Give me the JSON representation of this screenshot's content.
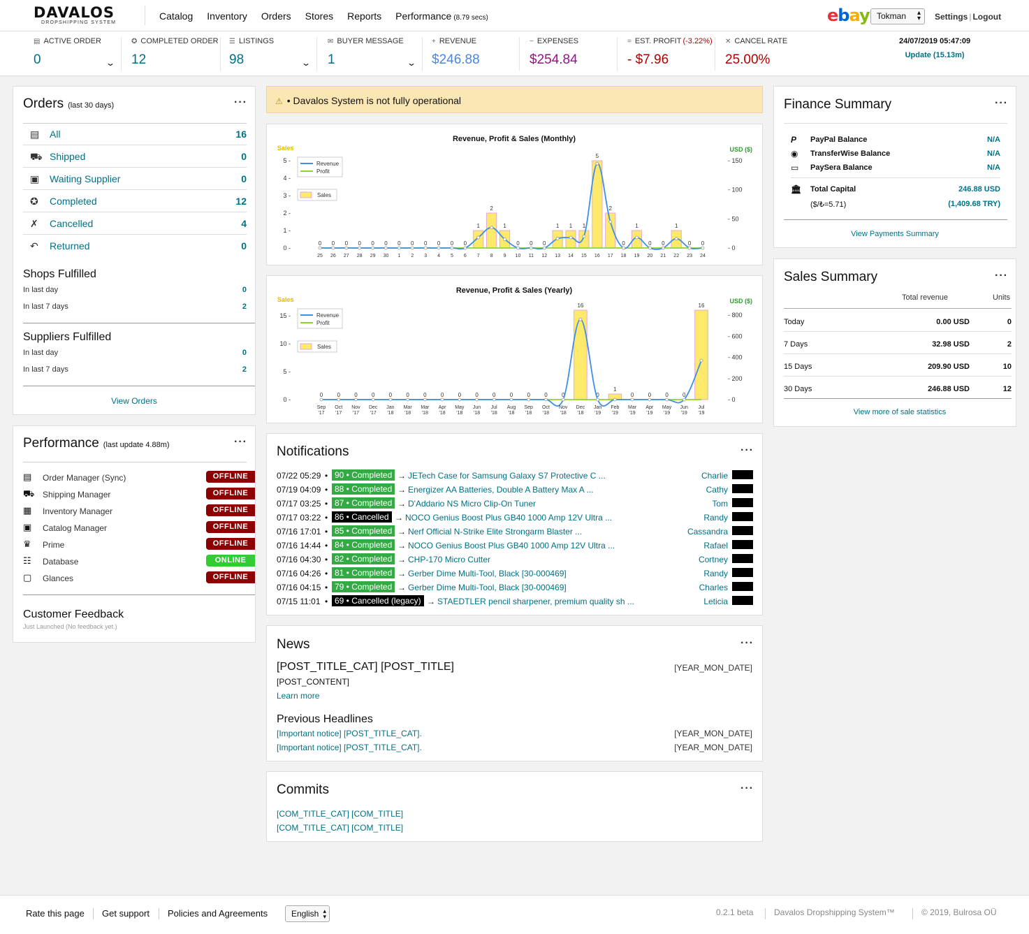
{
  "header": {
    "logo_main": "DAVALOS",
    "logo_sub": "DROPSHIPPING SYSTEM",
    "nav": [
      "Catalog",
      "Inventory",
      "Orders",
      "Stores",
      "Reports",
      "Performance"
    ],
    "perf_time": "(8.79 secs)",
    "ebay": {
      "e": "e",
      "b": "b",
      "a": "a",
      "y": "y"
    },
    "account": "Tokman",
    "settings": "Settings",
    "logout": "Logout"
  },
  "stats": [
    {
      "label": "ACTIVE ORDER",
      "value": "0",
      "icon": "doc-icon",
      "glyph": "▤",
      "color": "#007185"
    },
    {
      "label": "COMPLETED ORDER",
      "value": "12",
      "icon": "ribbon-icon",
      "glyph": "✪",
      "color": "#007185"
    },
    {
      "label": "LISTINGS",
      "value": "98",
      "icon": "list-icon",
      "glyph": "☰",
      "color": "#007185"
    },
    {
      "label": "BUYER MESSAGE",
      "value": "1",
      "icon": "envelope-icon",
      "glyph": "✉",
      "color": "#007185"
    },
    {
      "label": "REVENUE",
      "value": "$246.88",
      "icon": "plus-icon",
      "glyph": "+",
      "color": "#4a86e8"
    },
    {
      "label": "EXPENSES",
      "value": "$254.84",
      "icon": "minus-icon",
      "glyph": "−",
      "color": "#9c0e8a"
    },
    {
      "label": "EST. PROFIT",
      "label_extra": "(-3.22%)",
      "value": "- $7.96",
      "icon": "equals-icon",
      "glyph": "=",
      "color": "#b10000"
    },
    {
      "label": "CANCEL RATE",
      "value": "25.00%",
      "icon": "x-icon",
      "glyph": "✕",
      "color": "#b10000"
    }
  ],
  "datetime": "24/07/2019 05:47:09",
  "update": "Update (15.13m)",
  "orders": {
    "title": "Orders",
    "subtitle": "(last 30 days)",
    "rows": [
      {
        "label": "All",
        "count": "16",
        "icon": "doc-icon",
        "glyph": "▤"
      },
      {
        "label": "Shipped",
        "count": "0",
        "icon": "truck-icon",
        "glyph": "⛟"
      },
      {
        "label": "Waiting Supplier",
        "count": "0",
        "icon": "box-icon",
        "glyph": "▣"
      },
      {
        "label": "Completed",
        "count": "12",
        "icon": "ribbon-icon",
        "glyph": "✪"
      },
      {
        "label": "Cancelled",
        "count": "4",
        "icon": "ribbon-cross-icon",
        "glyph": "✗"
      },
      {
        "label": "Returned",
        "count": "0",
        "icon": "return-icon",
        "glyph": "↶"
      }
    ],
    "shops_title": "Shops Fulfilled",
    "shops": [
      {
        "label": "In last day",
        "value": "0"
      },
      {
        "label": "In last 7 days",
        "value": "2"
      }
    ],
    "suppliers_title": "Suppliers Fulfilled",
    "suppliers": [
      {
        "label": "In last day",
        "value": "0"
      },
      {
        "label": "In last 7 days",
        "value": "2"
      }
    ],
    "view_link": "View Orders"
  },
  "performance": {
    "title": "Performance",
    "subtitle": "(last update 4.88m)",
    "rows": [
      {
        "label": "Order Manager (Sync)",
        "status": "OFFLINE",
        "icon": "doc-icon",
        "glyph": "▤"
      },
      {
        "label": "Shipping Manager",
        "status": "OFFLINE",
        "icon": "truck-icon",
        "glyph": "⛟"
      },
      {
        "label": "Inventory Manager",
        "status": "OFFLINE",
        "icon": "warehouse-icon",
        "glyph": "▦"
      },
      {
        "label": "Catalog Manager",
        "status": "OFFLINE",
        "icon": "catalog-icon",
        "glyph": "▣"
      },
      {
        "label": "Prime",
        "status": "OFFLINE",
        "icon": "crown-icon",
        "glyph": "♛"
      },
      {
        "label": "Database",
        "status": "ONLINE",
        "icon": "database-icon",
        "glyph": "☷"
      },
      {
        "label": "Glances",
        "status": "OFFLINE",
        "icon": "monitor-icon",
        "glyph": "▢"
      }
    ],
    "colors": {
      "offline": "#8b0000",
      "online": "#33cc33"
    },
    "feedback_title": "Customer Feedback",
    "feedback_sub": "Just Launched (No feedback yet.)"
  },
  "alert": {
    "icon": "warning-icon",
    "glyph": "⚠",
    "text": "• Davalos System is not fully operational"
  },
  "chart_data": [
    {
      "type": "bar",
      "title": "Revenue, Profit & Sales (Monthly)",
      "left_axis_label": "Sales",
      "right_axis_label": "USD ($)",
      "categories": [
        "25",
        "26",
        "27",
        "28",
        "29",
        "30",
        "1",
        "2",
        "3",
        "4",
        "5",
        "6",
        "7",
        "8",
        "9",
        "10",
        "11",
        "12",
        "13",
        "14",
        "15",
        "16",
        "17",
        "18",
        "19",
        "20",
        "21",
        "22",
        "23",
        "24"
      ],
      "left_ticks": [
        "0",
        "1",
        "2",
        "3",
        "4",
        "5"
      ],
      "right_ticks": [
        "0",
        "50",
        "100",
        "150"
      ],
      "ylim_left": [
        0,
        5
      ],
      "ylim_right": [
        0,
        150
      ],
      "legend": [
        "Revenue",
        "Profit",
        "Sales"
      ],
      "series": [
        {
          "name": "Sales",
          "values": [
            0,
            0,
            0,
            0,
            0,
            0,
            0,
            0,
            0,
            0,
            0,
            0,
            1,
            2,
            1,
            0,
            0,
            0,
            1,
            1,
            1,
            5,
            2,
            0,
            1,
            0,
            0,
            1,
            0,
            0
          ]
        },
        {
          "name": "Revenue",
          "values": [
            0,
            0,
            0,
            0,
            0,
            0,
            0,
            0,
            0,
            0,
            0,
            0,
            18,
            35,
            15,
            0,
            0,
            0,
            16,
            18,
            20,
            145,
            45,
            0,
            18,
            0,
            0,
            16,
            0,
            0
          ]
        },
        {
          "name": "Profit",
          "values": [
            0,
            0,
            0,
            0,
            0,
            0,
            0,
            0,
            0,
            0,
            0,
            0,
            0,
            0,
            0,
            0,
            0,
            0,
            0,
            0,
            0,
            0,
            0,
            0,
            0,
            0,
            0,
            0,
            0,
            0
          ]
        }
      ]
    },
    {
      "type": "bar",
      "title": "Revenue, Profit & Sales (Yearly)",
      "left_axis_label": "Sales",
      "right_axis_label": "USD ($)",
      "categories": [
        [
          "Sep",
          "'17"
        ],
        [
          "Oct",
          "'17"
        ],
        [
          "Nov",
          "'17"
        ],
        [
          "Dec",
          "'17"
        ],
        [
          "Jan",
          "'18"
        ],
        [
          "Mar",
          "'18"
        ],
        [
          "Mar",
          "'18"
        ],
        [
          "Apr",
          "'18"
        ],
        [
          "May",
          "'18"
        ],
        [
          "Jun",
          "'18"
        ],
        [
          "Jul",
          "'18"
        ],
        [
          "Aug",
          "'18"
        ],
        [
          "Sep",
          "'18"
        ],
        [
          "Oct",
          "'18"
        ],
        [
          "Nov",
          "'18"
        ],
        [
          "Dec",
          "'18"
        ],
        [
          "Jan",
          "'19"
        ],
        [
          "Feb",
          "'19"
        ],
        [
          "Mar",
          "'19"
        ],
        [
          "Apr",
          "'19"
        ],
        [
          "May",
          "'19"
        ],
        [
          "Jun",
          "'19"
        ],
        [
          "Jul",
          "'19"
        ]
      ],
      "left_ticks": [
        "0",
        "5",
        "10",
        "15"
      ],
      "right_ticks": [
        "0",
        "200",
        "400",
        "600",
        "800"
      ],
      "ylim_left": [
        0,
        17
      ],
      "ylim_right": [
        0,
        900
      ],
      "legend": [
        "Revenue",
        "Profit",
        "Sales"
      ],
      "series": [
        {
          "name": "Sales",
          "values": [
            0,
            0,
            0,
            0,
            0,
            0,
            0,
            0,
            0,
            0,
            0,
            0,
            0,
            0,
            0,
            16,
            0,
            1,
            0,
            0,
            0,
            0,
            16
          ]
        },
        {
          "name": "Revenue",
          "values": [
            0,
            0,
            0,
            0,
            0,
            0,
            0,
            0,
            0,
            0,
            0,
            0,
            0,
            0,
            0,
            760,
            0,
            0,
            0,
            0,
            0,
            0,
            370
          ]
        },
        {
          "name": "Profit",
          "values": [
            0,
            0,
            0,
            0,
            0,
            0,
            0,
            0,
            0,
            0,
            0,
            0,
            0,
            0,
            0,
            0,
            0,
            0,
            0,
            0,
            0,
            0,
            0
          ]
        }
      ]
    }
  ],
  "chart_colors": {
    "sales_fill": "#fde96a",
    "sales_stroke": "#e6a8d8",
    "revenue": "#3d8fe8",
    "profit": "#8fd52a",
    "left_axis": "#e6b800",
    "right_axis": "#2ca02c"
  },
  "notifications": {
    "title": "Notifications",
    "rows": [
      {
        "date": "07/22 05:29",
        "badge": "90 • Completed",
        "status": "completed",
        "item": "JETech Case for Samsung Galaxy S7 Protective C ...",
        "customer": "Charlie"
      },
      {
        "date": "07/19 04:09",
        "badge": "88 • Completed",
        "status": "completed",
        "item": "Energizer AA Batteries, Double A Battery Max A ...",
        "customer": "Cathy"
      },
      {
        "date": "07/17 03:25",
        "badge": "87 • Completed",
        "status": "completed",
        "item": "D'Addario NS Micro Clip-On Tuner",
        "customer": "Tom"
      },
      {
        "date": "07/17 03:22",
        "badge": "86 • Cancelled",
        "status": "cancelled",
        "item": "NOCO Genius Boost Plus GB40 1000 Amp 12V Ultra ...",
        "customer": "Randy"
      },
      {
        "date": "07/16 17:01",
        "badge": "85 • Completed",
        "status": "completed",
        "item": "Nerf Official N-Strike Elite Strongarm Blaster ...",
        "customer": "Cassandra"
      },
      {
        "date": "07/16 14:44",
        "badge": "84 • Completed",
        "status": "completed",
        "item": "NOCO Genius Boost Plus GB40 1000 Amp 12V Ultra ...",
        "customer": "Rafael"
      },
      {
        "date": "07/16 04:30",
        "badge": "82 • Completed",
        "status": "completed",
        "item": "CHP-170 Micro Cutter",
        "customer": "Cortney"
      },
      {
        "date": "07/16 04:26",
        "badge": "81 • Completed",
        "status": "completed",
        "item": "Gerber Dime Multi-Tool, Black [30-000469]",
        "customer": "Randy"
      },
      {
        "date": "07/16 04:15",
        "badge": "79 • Completed",
        "status": "completed",
        "item": "Gerber Dime Multi-Tool, Black [30-000469]",
        "customer": "Charles"
      },
      {
        "date": "07/15 11:01",
        "badge": "69 • Cancelled (legacy)",
        "status": "cancelled",
        "item": "STAEDTLER pencil sharpener, premium quality sh ...",
        "customer": "Leticia"
      }
    ]
  },
  "news": {
    "title": "News",
    "post_title": "[POST_TITLE_CAT] [POST_TITLE]",
    "post_date": "[YEAR_MON_DATE]",
    "post_content": "[POST_CONTENT]",
    "learn_more": "Learn more",
    "prev_title": "Previous Headlines",
    "prev": [
      {
        "text": "[Important notice] [POST_TITLE_CAT].",
        "date": "[YEAR_MON_DATE]"
      },
      {
        "text": "[Important notice] [POST_TITLE_CAT].",
        "date": "[YEAR_MON_DATE]"
      }
    ]
  },
  "commits": {
    "title": "Commits",
    "rows": [
      "[COM_TITLE_CAT] [COM_TITLE]",
      "[COM_TITLE_CAT] [COM_TITLE]"
    ]
  },
  "finance": {
    "title": "Finance Summary",
    "rows": [
      {
        "label": "PayPal Balance",
        "value": "N/A",
        "icon": "paypal-icon",
        "glyph": "P"
      },
      {
        "label": "TransferWise Balance",
        "value": "N/A",
        "icon": "transferwise-icon",
        "glyph": "◉"
      },
      {
        "label": "PaySera Balance",
        "value": "N/A",
        "icon": "visa-card-icon",
        "glyph": "▭"
      }
    ],
    "capital_label": "Total Capital",
    "capital_value": "246.88 USD",
    "rate_label": "($/₺=5.71)",
    "rate_value": "(1,409.68 TRY)",
    "link": "View Payments Summary"
  },
  "sales": {
    "title": "Sales Summary",
    "col_revenue": "Total revenue",
    "col_units": "Units",
    "rows": [
      {
        "label": "Today",
        "revenue": "0.00 USD",
        "units": "0"
      },
      {
        "label": "7 Days",
        "revenue": "32.98 USD",
        "units": "2"
      },
      {
        "label": "15 Days",
        "revenue": "209.90 USD",
        "units": "10"
      },
      {
        "label": "30 Days",
        "revenue": "246.88 USD",
        "units": "12"
      }
    ],
    "link": "View more of sale statistics"
  },
  "footer": {
    "links": [
      "Rate this page",
      "Get support",
      "Policies and Agreements"
    ],
    "language": "English",
    "version": "0.2.1 beta",
    "product": "Davalos Dropshipping System™",
    "copyright": "© 2019, Bulrosa OÜ"
  }
}
